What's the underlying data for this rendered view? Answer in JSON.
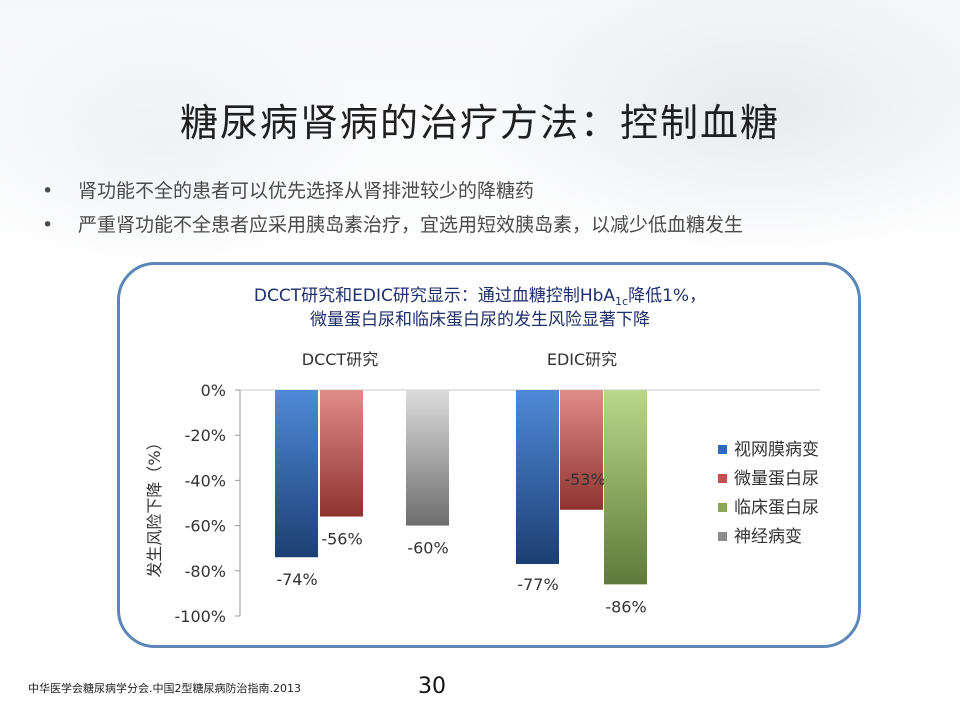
{
  "slide": {
    "title": "糖尿病肾病的治疗方法：控制血糖",
    "bullets": [
      "肾功能不全的患者可以优先选择从肾排泄较少的降糖药",
      "严重肾功能不全患者应采用胰岛素治疗，宜选用短效胰岛素，以减少低血糖发生"
    ],
    "bullet_glyph": "•",
    "footer_ref": "中华医学会糖尿病学分会.中国2型糖尿病防治指南.2013",
    "page_number": "30"
  },
  "chart_data": {
    "type": "bar",
    "title_line1_pre": "DCCT研究和EDIC研究显示：通过血糖控制HbA",
    "title_line1_sub": "1c",
    "title_line1_post": "降低1%，",
    "title_line2": "微量蛋白尿和临床蛋白尿的发生风险显著下降",
    "ylabel": "发生风险下降（%）",
    "ylim": [
      -100,
      0
    ],
    "yticks": [
      0,
      -20,
      -40,
      -60,
      -80,
      -100
    ],
    "ytick_labels": [
      "0%",
      "-20%",
      "-40%",
      "-60%",
      "-80%",
      "-100%"
    ],
    "categories": [
      "DCCT研究",
      "EDIC研究"
    ],
    "series": [
      {
        "name": "视网膜病变",
        "values": [
          -74,
          -77
        ],
        "labels": [
          "-74%",
          "-77%"
        ],
        "color": "#2e6bc0"
      },
      {
        "name": "微量蛋白尿",
        "values": [
          -56,
          -53
        ],
        "labels": [
          "-56%",
          "-53%"
        ],
        "color": "#c0504d"
      },
      {
        "name": "临床蛋白尿",
        "values": [
          null,
          -86
        ],
        "labels": [
          "",
          "-86%"
        ],
        "color": "#8aa85a"
      },
      {
        "name": "神经病变",
        "values": [
          -60,
          null
        ],
        "labels": [
          "-60%",
          ""
        ],
        "color": "#8c8c8c"
      }
    ],
    "legend_position": "right",
    "grid": false
  }
}
